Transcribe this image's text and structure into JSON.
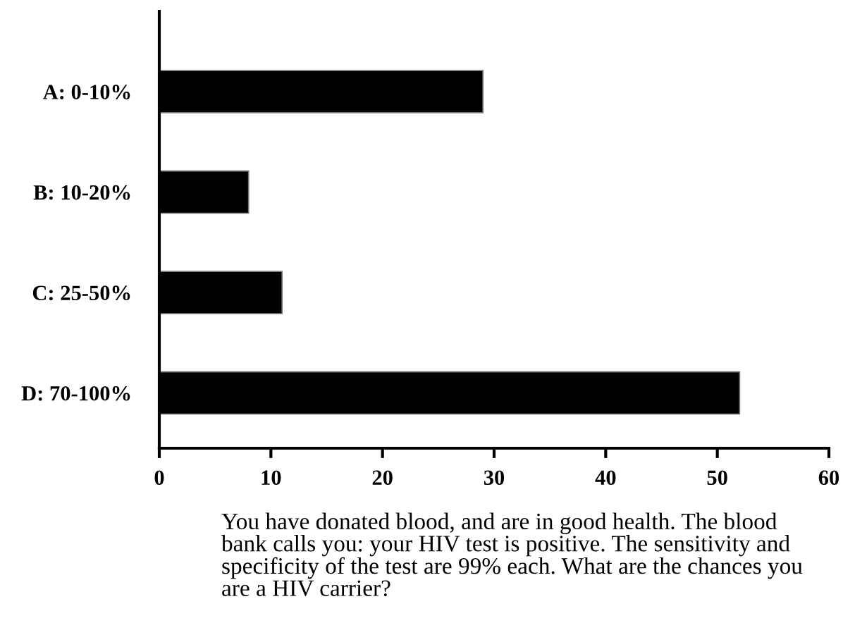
{
  "chart_data": {
    "type": "bar",
    "orientation": "horizontal",
    "categories": [
      "A: 0-10%",
      "B: 10-20%",
      "C: 25-50%",
      "D: 70-100%"
    ],
    "values": [
      29,
      8,
      11,
      52
    ],
    "color": "#000000",
    "xlim": [
      0,
      60
    ],
    "xticks": [
      0,
      10,
      20,
      30,
      40,
      50,
      60
    ],
    "grid": false,
    "legend": false,
    "xlabel": "You have donated blood, and are in good health. The blood\nbank calls you: your HIV test is positive. The sensitivity and\nspecificity of the test are 99% each. What are the chances you\nare a HIV carrier?"
  }
}
